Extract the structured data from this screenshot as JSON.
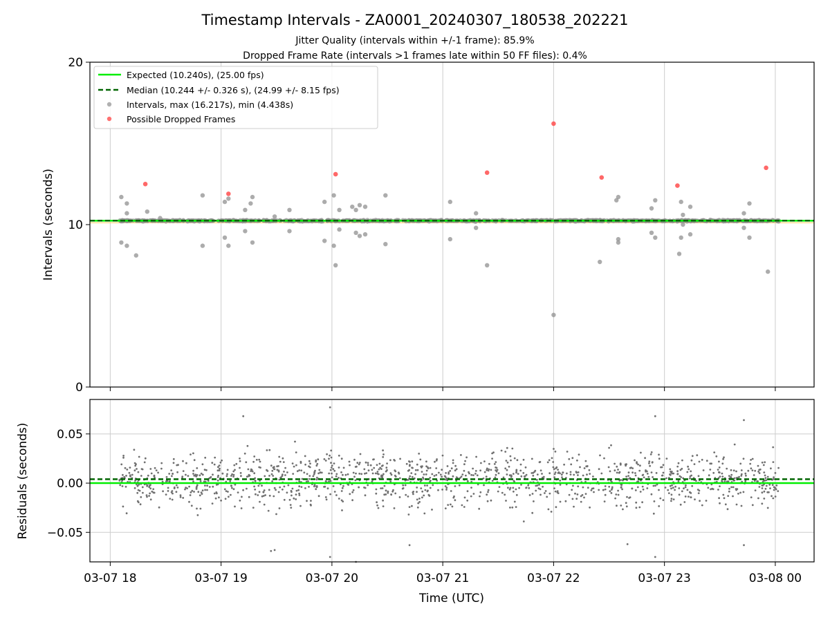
{
  "chart_data": [
    {
      "type": "scatter",
      "title": "Timestamp Intervals - ZA0001_20240307_180538_202221",
      "subtitle_lines": [
        "Jitter Quality (intervals within +/-1 frame): 85.9%",
        "Dropped Frame Rate (intervals >1 frames late within 50 FF files): 0.4%"
      ],
      "xlabel": "",
      "ylabel": "Intervals (seconds)",
      "ylim": [
        0,
        20
      ],
      "yticks": [
        "0",
        "10",
        "20"
      ],
      "xlim": [
        "2024-03-07T17:49",
        "2024-03-08T00:21"
      ],
      "grid": "x-only",
      "legend_placement": "top-left",
      "reference_lines": {
        "expected": 10.24,
        "median": 10.244,
        "band_low": 10.2,
        "band_high": 10.28
      },
      "colors": {
        "expected": "#00ee00",
        "median": "#006400",
        "intervals": "#909090",
        "dropped": "#ff4d4d",
        "band": "#ffd36b"
      },
      "legend": [
        "Expected (10.240s), (25.00 fps)",
        "Median (10.244 +/- 0.326 s), (24.99 +/- 8.15 fps)",
        "Intervals, max (16.217s), min (4.438s)",
        "Possible Dropped Frames"
      ],
      "series": [
        {
          "name": "Intervals, max (16.217s), min (4.438s)",
          "note": "dense band of ~2200 points near 10.24 s between 18:05 and 00:02 plus outliers below",
          "baseline": 10.24,
          "span": [
            "2024-03-07T18:05",
            "2024-03-08T00:02"
          ],
          "outliers": [
            [
              "18:06",
              11.7
            ],
            [
              "18:06",
              8.9
            ],
            [
              "18:09",
              11.3
            ],
            [
              "18:09",
              10.7
            ],
            [
              "18:09",
              8.7
            ],
            [
              "18:14",
              8.1
            ],
            [
              "18:20",
              10.8
            ],
            [
              "18:27",
              10.4
            ],
            [
              "18:50",
              11.8
            ],
            [
              "18:50",
              8.7
            ],
            [
              "19:02",
              11.4
            ],
            [
              "19:02",
              9.2
            ],
            [
              "19:04",
              11.6
            ],
            [
              "19:04",
              8.7
            ],
            [
              "19:13",
              10.9
            ],
            [
              "19:13",
              9.6
            ],
            [
              "19:16",
              11.3
            ],
            [
              "19:17",
              11.7
            ],
            [
              "19:17",
              8.9
            ],
            [
              "19:29",
              10.5
            ],
            [
              "19:37",
              10.9
            ],
            [
              "19:37",
              9.6
            ],
            [
              "19:56",
              11.4
            ],
            [
              "19:56",
              9.0
            ],
            [
              "20:01",
              11.8
            ],
            [
              "20:01",
              8.7
            ],
            [
              "20:02",
              7.5
            ],
            [
              "20:04",
              10.9
            ],
            [
              "20:04",
              9.7
            ],
            [
              "20:11",
              11.1
            ],
            [
              "20:13",
              10.9
            ],
            [
              "20:13",
              9.5
            ],
            [
              "20:15",
              11.2
            ],
            [
              "20:15",
              9.3
            ],
            [
              "20:18",
              11.1
            ],
            [
              "20:18",
              9.4
            ],
            [
              "20:29",
              11.8
            ],
            [
              "20:29",
              8.8
            ],
            [
              "21:04",
              11.4
            ],
            [
              "21:04",
              9.1
            ],
            [
              "21:18",
              10.7
            ],
            [
              "21:18",
              9.8
            ],
            [
              "21:24",
              7.5
            ],
            [
              "22:00",
              4.438
            ],
            [
              "22:25",
              7.7
            ],
            [
              "22:34",
              11.5
            ],
            [
              "22:35",
              11.7
            ],
            [
              "22:35",
              9.1
            ],
            [
              "22:35",
              8.9
            ],
            [
              "22:53",
              11.0
            ],
            [
              "22:53",
              9.5
            ],
            [
              "22:55",
              11.5
            ],
            [
              "22:55",
              9.2
            ],
            [
              "23:08",
              8.2
            ],
            [
              "23:09",
              11.4
            ],
            [
              "23:09",
              9.2
            ],
            [
              "23:10",
              10.6
            ],
            [
              "23:10",
              10.0
            ],
            [
              "23:14",
              11.1
            ],
            [
              "23:14",
              9.4
            ],
            [
              "23:43",
              10.7
            ],
            [
              "23:43",
              9.8
            ],
            [
              "23:46",
              11.3
            ],
            [
              "23:46",
              9.2
            ],
            [
              "23:56",
              7.1
            ]
          ]
        },
        {
          "name": "Possible Dropped Frames",
          "points": [
            [
              "18:19",
              12.5
            ],
            [
              "19:04",
              11.9
            ],
            [
              "20:02",
              13.1
            ],
            [
              "21:24",
              13.2
            ],
            [
              "22:00",
              16.217
            ],
            [
              "22:26",
              12.9
            ],
            [
              "23:07",
              12.4
            ],
            [
              "23:55",
              13.5
            ]
          ]
        }
      ]
    },
    {
      "type": "scatter",
      "xlabel": "Time (UTC)",
      "ylabel": "Residuals (seconds)",
      "ylim": [
        -0.08,
        0.085
      ],
      "yticks": [
        "−0.05",
        "0.00",
        "0.05"
      ],
      "xticks": [
        "03-07 18",
        "03-07 19",
        "03-07 20",
        "03-07 21",
        "03-07 22",
        "03-07 23",
        "03-08 00"
      ],
      "xlim": [
        "2024-03-07T17:49",
        "2024-03-08T00:21"
      ],
      "grid": "both",
      "reference_lines": {
        "zero": 0.0,
        "median_offset": 0.004
      },
      "colors": {
        "zero": "#00ee00",
        "median": "#006400",
        "points": "#707070"
      },
      "series": [
        {
          "note": "~1400 residual points, mean ~0.004 s, sd ~0.02 s, spanning 18:05 to 00:02",
          "span": [
            "2024-03-07T18:05",
            "2024-03-08T00:02"
          ],
          "extremes": [
            [
              "19:59",
              0.077
            ],
            [
              "19:12",
              0.068
            ],
            [
              "22:55",
              0.068
            ],
            [
              "23:43",
              0.064
            ],
            [
              "19:59",
              -0.075
            ],
            [
              "20:13",
              -0.08
            ],
            [
              "22:55",
              -0.075
            ],
            [
              "19:27",
              -0.069
            ],
            [
              "19:29",
              -0.068
            ],
            [
              "20:42",
              -0.063
            ],
            [
              "22:40",
              -0.062
            ],
            [
              "23:43",
              -0.063
            ]
          ]
        }
      ]
    }
  ]
}
